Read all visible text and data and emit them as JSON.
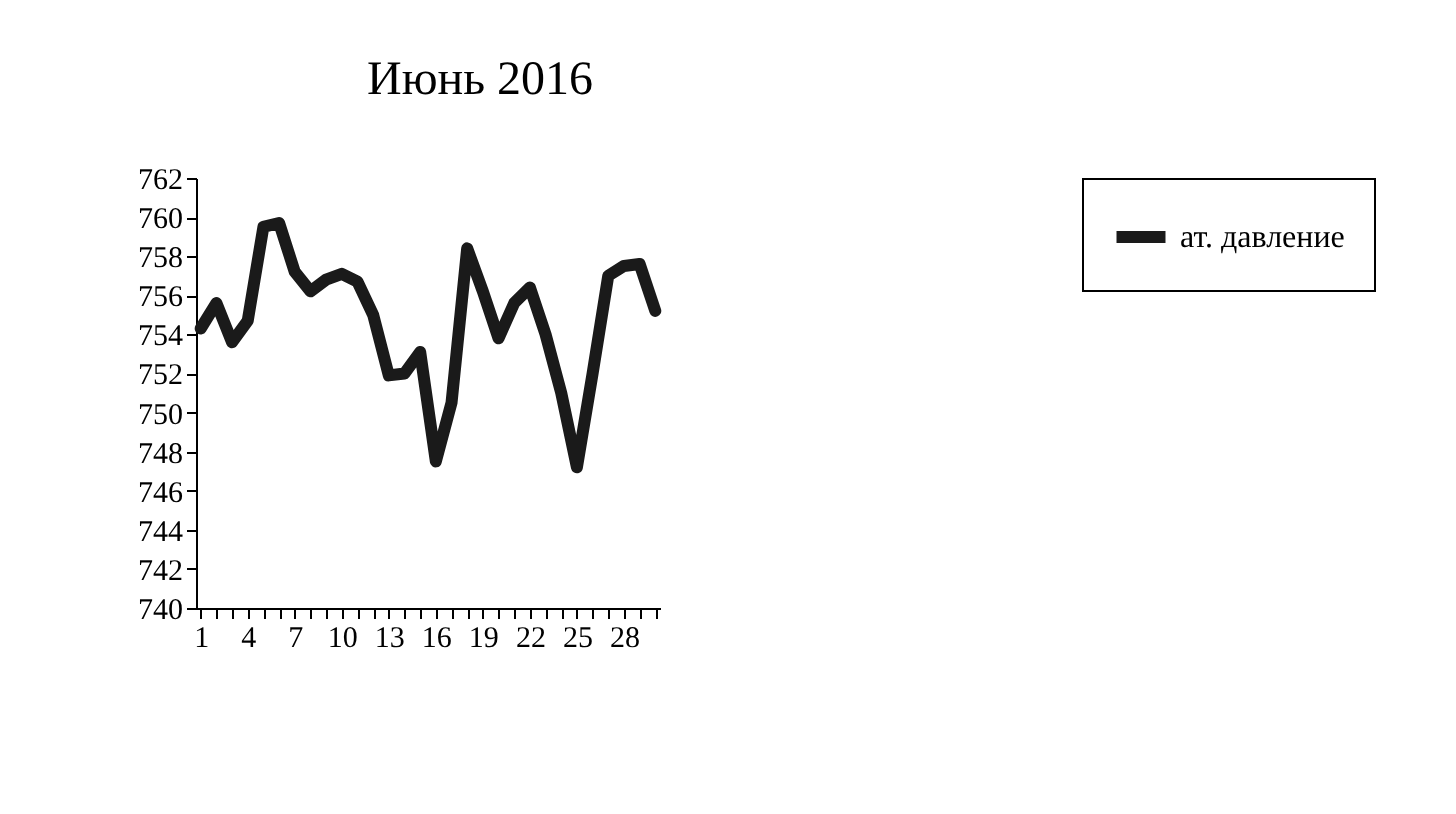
{
  "chart_data": {
    "type": "line",
    "title": "Июнь 2016",
    "categories": [
      "1",
      null,
      null,
      "4",
      null,
      null,
      "7",
      null,
      null,
      "10",
      null,
      null,
      "13",
      null,
      null,
      "16",
      null,
      null,
      "19",
      null,
      null,
      "22",
      null,
      null,
      "25",
      null,
      null,
      "28",
      null,
      null
    ],
    "series": [
      {
        "name": "ат. давление",
        "color": "#1a1a1a",
        "values": [
          754.3,
          755.6,
          753.6,
          754.7,
          759.5,
          759.7,
          757.2,
          756.2,
          756.8,
          757.1,
          756.7,
          755.0,
          751.9,
          752.0,
          753.1,
          747.5,
          750.5,
          758.4,
          756.2,
          753.8,
          755.6,
          756.4,
          754.0,
          751.0,
          747.2,
          752.0,
          757.0,
          757.5,
          757.6,
          755.2
        ]
      }
    ],
    "ylim": [
      740,
      762
    ],
    "yticks": [
      740,
      742,
      744,
      746,
      748,
      750,
      752,
      754,
      756,
      758,
      760,
      762
    ],
    "grid": false,
    "legend": "right",
    "marker": "none",
    "line_style": "solid"
  }
}
